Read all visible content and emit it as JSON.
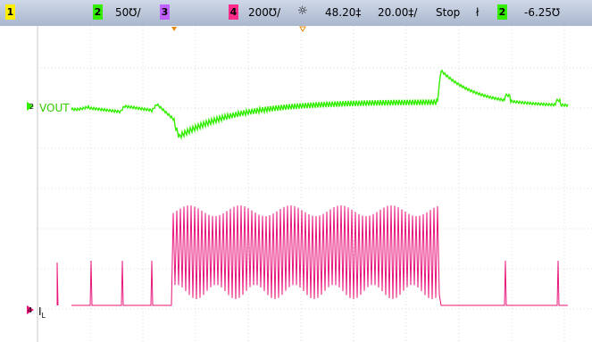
{
  "toolbar": {
    "ch1_label": "1",
    "ch2_label": "2",
    "ch2_scale": "50℧/",
    "ch3_label": "3",
    "ch4_label": "4",
    "ch4_scale": "200℧/",
    "trigger_delay": "48.20‡",
    "timebase": "20.00‡/",
    "run_state": "Stop",
    "trigger_source_label": "2",
    "trigger_level": "-6.25℧"
  },
  "traces": {
    "vout": {
      "label": "VOUT",
      "marker": "2",
      "color": "#33ee00"
    },
    "il": {
      "label": "I",
      "sub": "L",
      "marker": "4",
      "color": "#e8157a"
    }
  },
  "colors": {
    "ch1": "#ffee00",
    "ch2": "#33ee00",
    "ch3": "#c060ff",
    "ch4": "#ff2a8a",
    "toolbar_bg": "#b8c3d6"
  }
}
